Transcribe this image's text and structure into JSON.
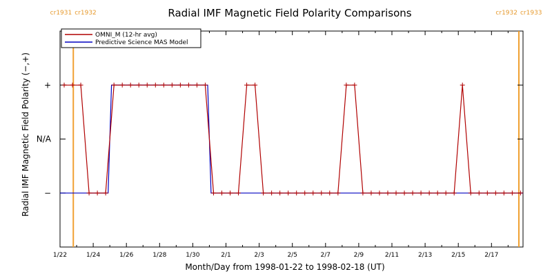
{
  "chart_data": {
    "type": "line",
    "title": "Radial IMF Magnetic Field Polarity Comparisons",
    "xlabel": "Month/Day from 1998-01-22 to 1998-02-18 (UT)",
    "ylabel": "Radial IMF Magnetic Field Polarity (−,+)",
    "x_unit": "days from 1998-01-22 00:00 UT",
    "xlim": [
      0,
      27.9
    ],
    "ylim": [
      -2,
      2
    ],
    "x_ticks": [
      {
        "x": 0,
        "label": "1/22"
      },
      {
        "x": 2,
        "label": "1/24"
      },
      {
        "x": 4,
        "label": "1/26"
      },
      {
        "x": 6,
        "label": "1/28"
      },
      {
        "x": 8,
        "label": "1/30"
      },
      {
        "x": 10,
        "label": "2/1"
      },
      {
        "x": 12,
        "label": "2/3"
      },
      {
        "x": 14,
        "label": "2/5"
      },
      {
        "x": 16,
        "label": "2/7"
      },
      {
        "x": 18,
        "label": "2/9"
      },
      {
        "x": 20,
        "label": "2/11"
      },
      {
        "x": 22,
        "label": "2/13"
      },
      {
        "x": 24,
        "label": "2/15"
      },
      {
        "x": 26,
        "label": "2/17"
      }
    ],
    "y_ticks": [
      {
        "y": 1,
        "label": "+"
      },
      {
        "y": 0,
        "label": "N/A"
      },
      {
        "y": -1,
        "label": "−"
      }
    ],
    "carrington_markers": [
      {
        "x": 0.8,
        "left_label": "cr1931",
        "right_label": "cr1932"
      },
      {
        "x": 27.65,
        "left_label": "cr1932",
        "right_label": "cr1933"
      }
    ],
    "legend": {
      "position": "top-left"
    },
    "series": [
      {
        "name": "OMNI_M (12-hr avg)",
        "color": "#b00000",
        "markers": true,
        "x": [
          0.25,
          0.75,
          1.25,
          1.75,
          2.25,
          2.75,
          3.25,
          3.75,
          4.25,
          4.75,
          5.25,
          5.75,
          6.25,
          6.75,
          7.25,
          7.75,
          8.25,
          8.75,
          9.25,
          9.75,
          10.25,
          10.75,
          11.25,
          11.75,
          12.25,
          12.75,
          13.25,
          13.75,
          14.25,
          14.75,
          15.25,
          15.75,
          16.25,
          16.75,
          17.25,
          17.75,
          18.25,
          18.75,
          19.25,
          19.75,
          20.25,
          20.75,
          21.25,
          21.75,
          22.25,
          22.75,
          23.25,
          23.75,
          24.25,
          24.75,
          25.25,
          25.75,
          26.25,
          26.75,
          27.25,
          27.75
        ],
        "y": [
          1,
          1,
          1,
          -1,
          -1,
          -1,
          1,
          1,
          1,
          1,
          1,
          1,
          1,
          1,
          1,
          1,
          1,
          1,
          -1,
          -1,
          -1,
          -1,
          1,
          1,
          -1,
          -1,
          -1,
          -1,
          -1,
          -1,
          -1,
          -1,
          -1,
          -1,
          1,
          1,
          -1,
          -1,
          -1,
          -1,
          -1,
          -1,
          -1,
          -1,
          -1,
          -1,
          -1,
          -1,
          1,
          -1,
          -1,
          -1,
          -1,
          -1,
          -1,
          -1
        ]
      },
      {
        "name": "Predictive Science MAS Model",
        "color": "#0000c0",
        "markers": false,
        "x": [
          0,
          2.9,
          3.1,
          8.9,
          9.1,
          27.9
        ],
        "y": [
          -1,
          -1,
          1,
          1,
          -1,
          -1
        ]
      }
    ]
  }
}
